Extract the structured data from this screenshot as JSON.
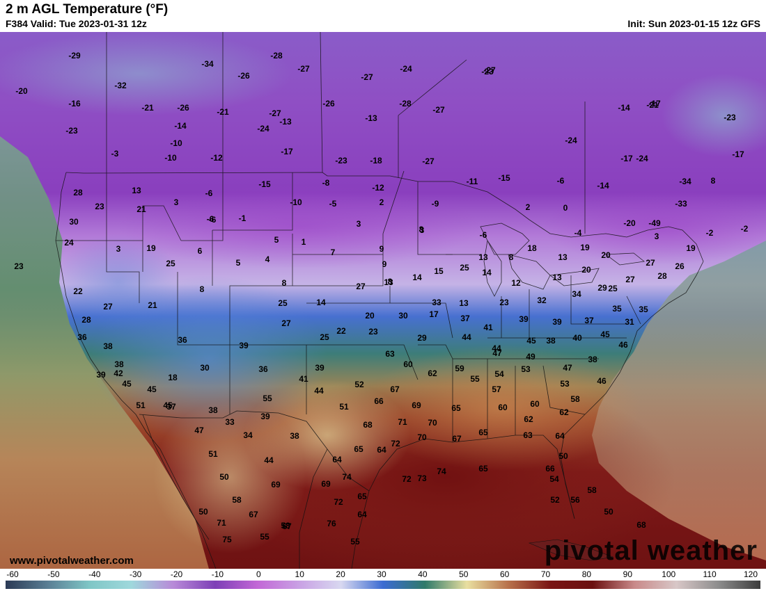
{
  "header": {
    "title": "2 m AGL Temperature (°F)",
    "valid": "F384 Valid: Tue 2023-01-31 12z",
    "init": "Init: Sun 2023-01-15 12z GFS"
  },
  "watermark": {
    "url": "www.pivotalweather.com",
    "logo": "pivotal weather"
  },
  "colorbar": {
    "ticks": [
      "-60",
      "-50",
      "-40",
      "-30",
      "-20",
      "-10",
      "0",
      "10",
      "20",
      "30",
      "40",
      "50",
      "60",
      "70",
      "80",
      "90",
      "100",
      "110",
      "120"
    ],
    "range": [
      -60,
      120
    ],
    "stops": [
      {
        "v": -60,
        "c": "#2b3a55"
      },
      {
        "v": -50,
        "c": "#5a7e94"
      },
      {
        "v": -40,
        "c": "#7fc6c6"
      },
      {
        "v": -30,
        "c": "#9fd8dc"
      },
      {
        "v": -20,
        "c": "#b88ad8"
      },
      {
        "v": -10,
        "c": "#7d3fb6"
      },
      {
        "v": 0,
        "c": "#c267d6"
      },
      {
        "v": 10,
        "c": "#c9a1e4"
      },
      {
        "v": 20,
        "c": "#d8d8f0"
      },
      {
        "v": 30,
        "c": "#3b6bd2"
      },
      {
        "v": 40,
        "c": "#2f7a6a"
      },
      {
        "v": 50,
        "c": "#e9dfa0"
      },
      {
        "v": 60,
        "c": "#b7704a"
      },
      {
        "v": 70,
        "c": "#7a1414"
      },
      {
        "v": 80,
        "c": "#6b1010"
      },
      {
        "v": 90,
        "c": "#c98a8a"
      },
      {
        "v": 100,
        "c": "#d8c7c7"
      },
      {
        "v": 110,
        "c": "#8d8d8d"
      },
      {
        "v": 120,
        "c": "#3c3c3c"
      }
    ]
  },
  "map": {
    "labels": [
      "-29",
      "-32",
      "-34",
      "-28",
      "-27",
      "-24",
      "-26",
      "-27",
      "-20",
      "-16",
      "-21",
      "-26",
      "-21",
      "-27",
      "-26",
      "-28",
      "-27",
      "-23",
      "-14",
      "-24",
      "-13",
      "-23",
      "-13",
      "-24",
      "-17",
      "-21",
      "-14",
      "-3",
      "-10",
      "-17",
      "-23",
      "-18",
      "-27",
      "-24",
      "-17",
      "-23",
      "-10",
      "-12",
      "-27",
      "-17",
      "-15",
      "-6",
      "-8",
      "-12",
      "-11",
      "-15",
      "-6",
      "-14",
      "-34",
      "8",
      "28",
      "13",
      "3",
      "-6",
      "-10",
      "-5",
      "2",
      "-9",
      "2",
      "0",
      "-20",
      "-49",
      "-33",
      "23",
      "21",
      "-6",
      "-1",
      "3",
      "3",
      "-2",
      "5",
      "1",
      "8",
      "9",
      "3",
      "-6",
      "-4",
      "8",
      "-2",
      "19",
      "30",
      "24",
      "3",
      "19",
      "6",
      "5",
      "4",
      "7",
      "9",
      "13",
      "15",
      "25",
      "13",
      "8",
      "18",
      "13",
      "19",
      "20",
      "20",
      "27",
      "26",
      "23",
      "25",
      "22",
      "27",
      "21",
      "8",
      "14",
      "27",
      "8",
      "14",
      "12",
      "13",
      "29",
      "27",
      "28",
      "25",
      "25",
      "14",
      "20",
      "17",
      "13",
      "23",
      "32",
      "34",
      "35",
      "31",
      "28",
      "36",
      "36",
      "27",
      "25",
      "22",
      "30",
      "33",
      "37",
      "41",
      "39",
      "39",
      "37",
      "35",
      "39",
      "23",
      "29",
      "44",
      "44",
      "45",
      "38",
      "40",
      "45",
      "46",
      "39",
      "38",
      "38",
      "39",
      "55",
      "47",
      "49",
      "47",
      "38",
      "42",
      "18",
      "30",
      "36",
      "41",
      "63",
      "60",
      "59",
      "55",
      "54",
      "53",
      "53",
      "46",
      "45",
      "45",
      "37",
      "44",
      "52",
      "67",
      "62",
      "57",
      "60",
      "58",
      "51",
      "45",
      "38",
      "51",
      "66",
      "69",
      "65",
      "60",
      "62",
      "62",
      "47",
      "33",
      "39",
      "68",
      "71",
      "70",
      "67",
      "65",
      "63",
      "64",
      "34",
      "38",
      "72",
      "70",
      "51",
      "44",
      "65",
      "64",
      "64",
      "50",
      "50",
      "69",
      "69",
      "74",
      "72",
      "74",
      "65",
      "66",
      "54",
      "58",
      "67",
      "72",
      "65",
      "73",
      "52",
      "56",
      "58",
      "50",
      "71",
      "75",
      "58",
      "64",
      "50",
      "55",
      "67",
      "76",
      "55",
      "68"
    ]
  }
}
